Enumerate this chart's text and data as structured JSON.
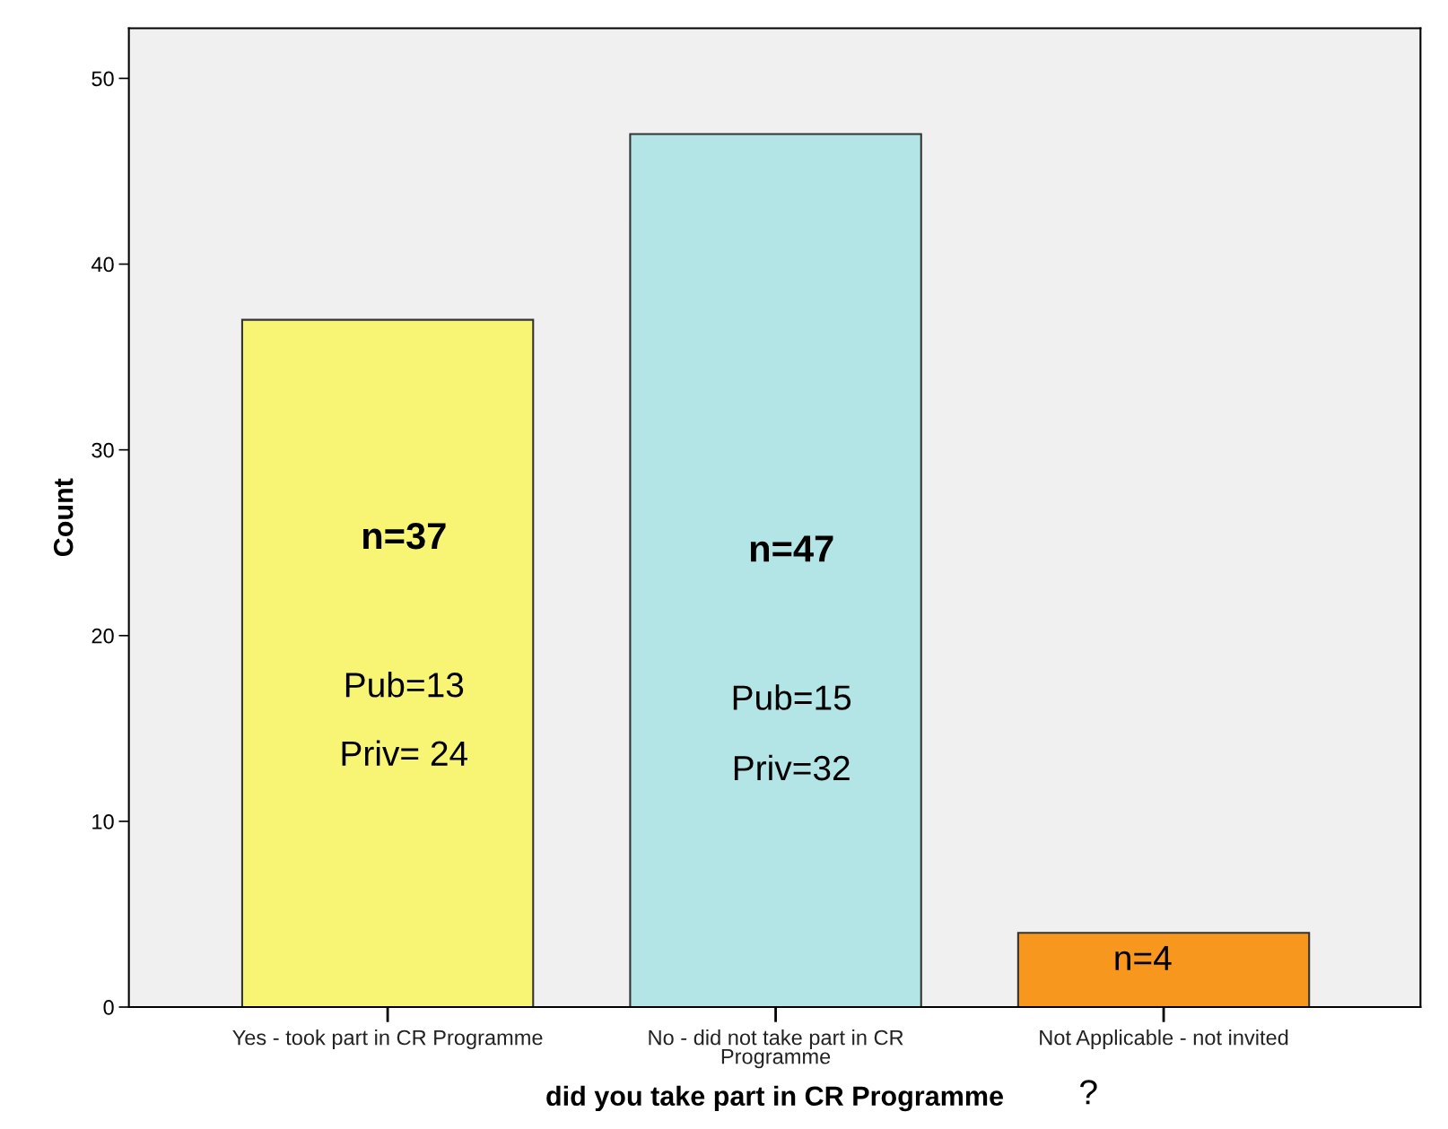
{
  "chart_data": {
    "type": "bar",
    "xlabel": "did you take part in CR Programme",
    "ylabel": "Count",
    "categories": [
      "Yes - took part in CR Programme",
      "No - did not take part in CR\nProgramme",
      "Not Applicable - not invited"
    ],
    "values": [
      37,
      47,
      4
    ],
    "colors": [
      "#f8f574",
      "#b3e5e6",
      "#f7971e"
    ],
    "ylim": [
      0,
      52.7
    ],
    "yticks": [
      0,
      10,
      20,
      30,
      40,
      50
    ],
    "grid": false,
    "legend": false,
    "annotations": [
      "n=37",
      "Pub=13",
      "Priv= 24",
      "n=47",
      "Pub=15",
      "Priv=32",
      "n=4",
      "?"
    ]
  }
}
